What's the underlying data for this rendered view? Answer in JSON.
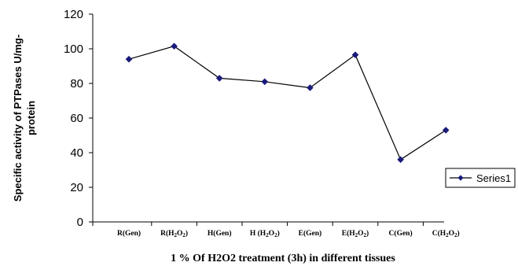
{
  "chart_data": {
    "type": "line",
    "title": "",
    "xlabel": "1 % Of H2O2  treatment (3h) in different tissues",
    "ylabel_lines": [
      "Specific activity of PTPases U/mg-",
      "protein"
    ],
    "categories": [
      {
        "base": "R(Gen)",
        "sub": ""
      },
      {
        "base": "R(H",
        "sub": "2",
        "mid": "O",
        "sub2": "2",
        "end": ")"
      },
      {
        "base": "H(Gen)",
        "sub": ""
      },
      {
        "base": "H (H",
        "sub": "2",
        "mid": "O",
        "sub2": "2",
        "end": ")"
      },
      {
        "base": "E(Gen)",
        "sub": ""
      },
      {
        "base": "E(H",
        "sub": "2",
        "mid": "O",
        "sub2": "2",
        "end": ")"
      },
      {
        "base": "C(Gen)",
        "sub": ""
      },
      {
        "base": "C(H",
        "sub": "2",
        "mid": "O",
        "sub2": "2",
        "end": ")"
      }
    ],
    "series": [
      {
        "name": "Series1",
        "values": [
          94,
          101.5,
          83,
          81,
          77.5,
          96.5,
          36,
          53
        ]
      }
    ],
    "ylim": [
      0,
      120
    ],
    "yticks": [
      0,
      20,
      40,
      60,
      80,
      100,
      120
    ],
    "grid": false,
    "legend_position": "right",
    "line_color": "#000000",
    "marker_color": "#1a1a7a"
  }
}
